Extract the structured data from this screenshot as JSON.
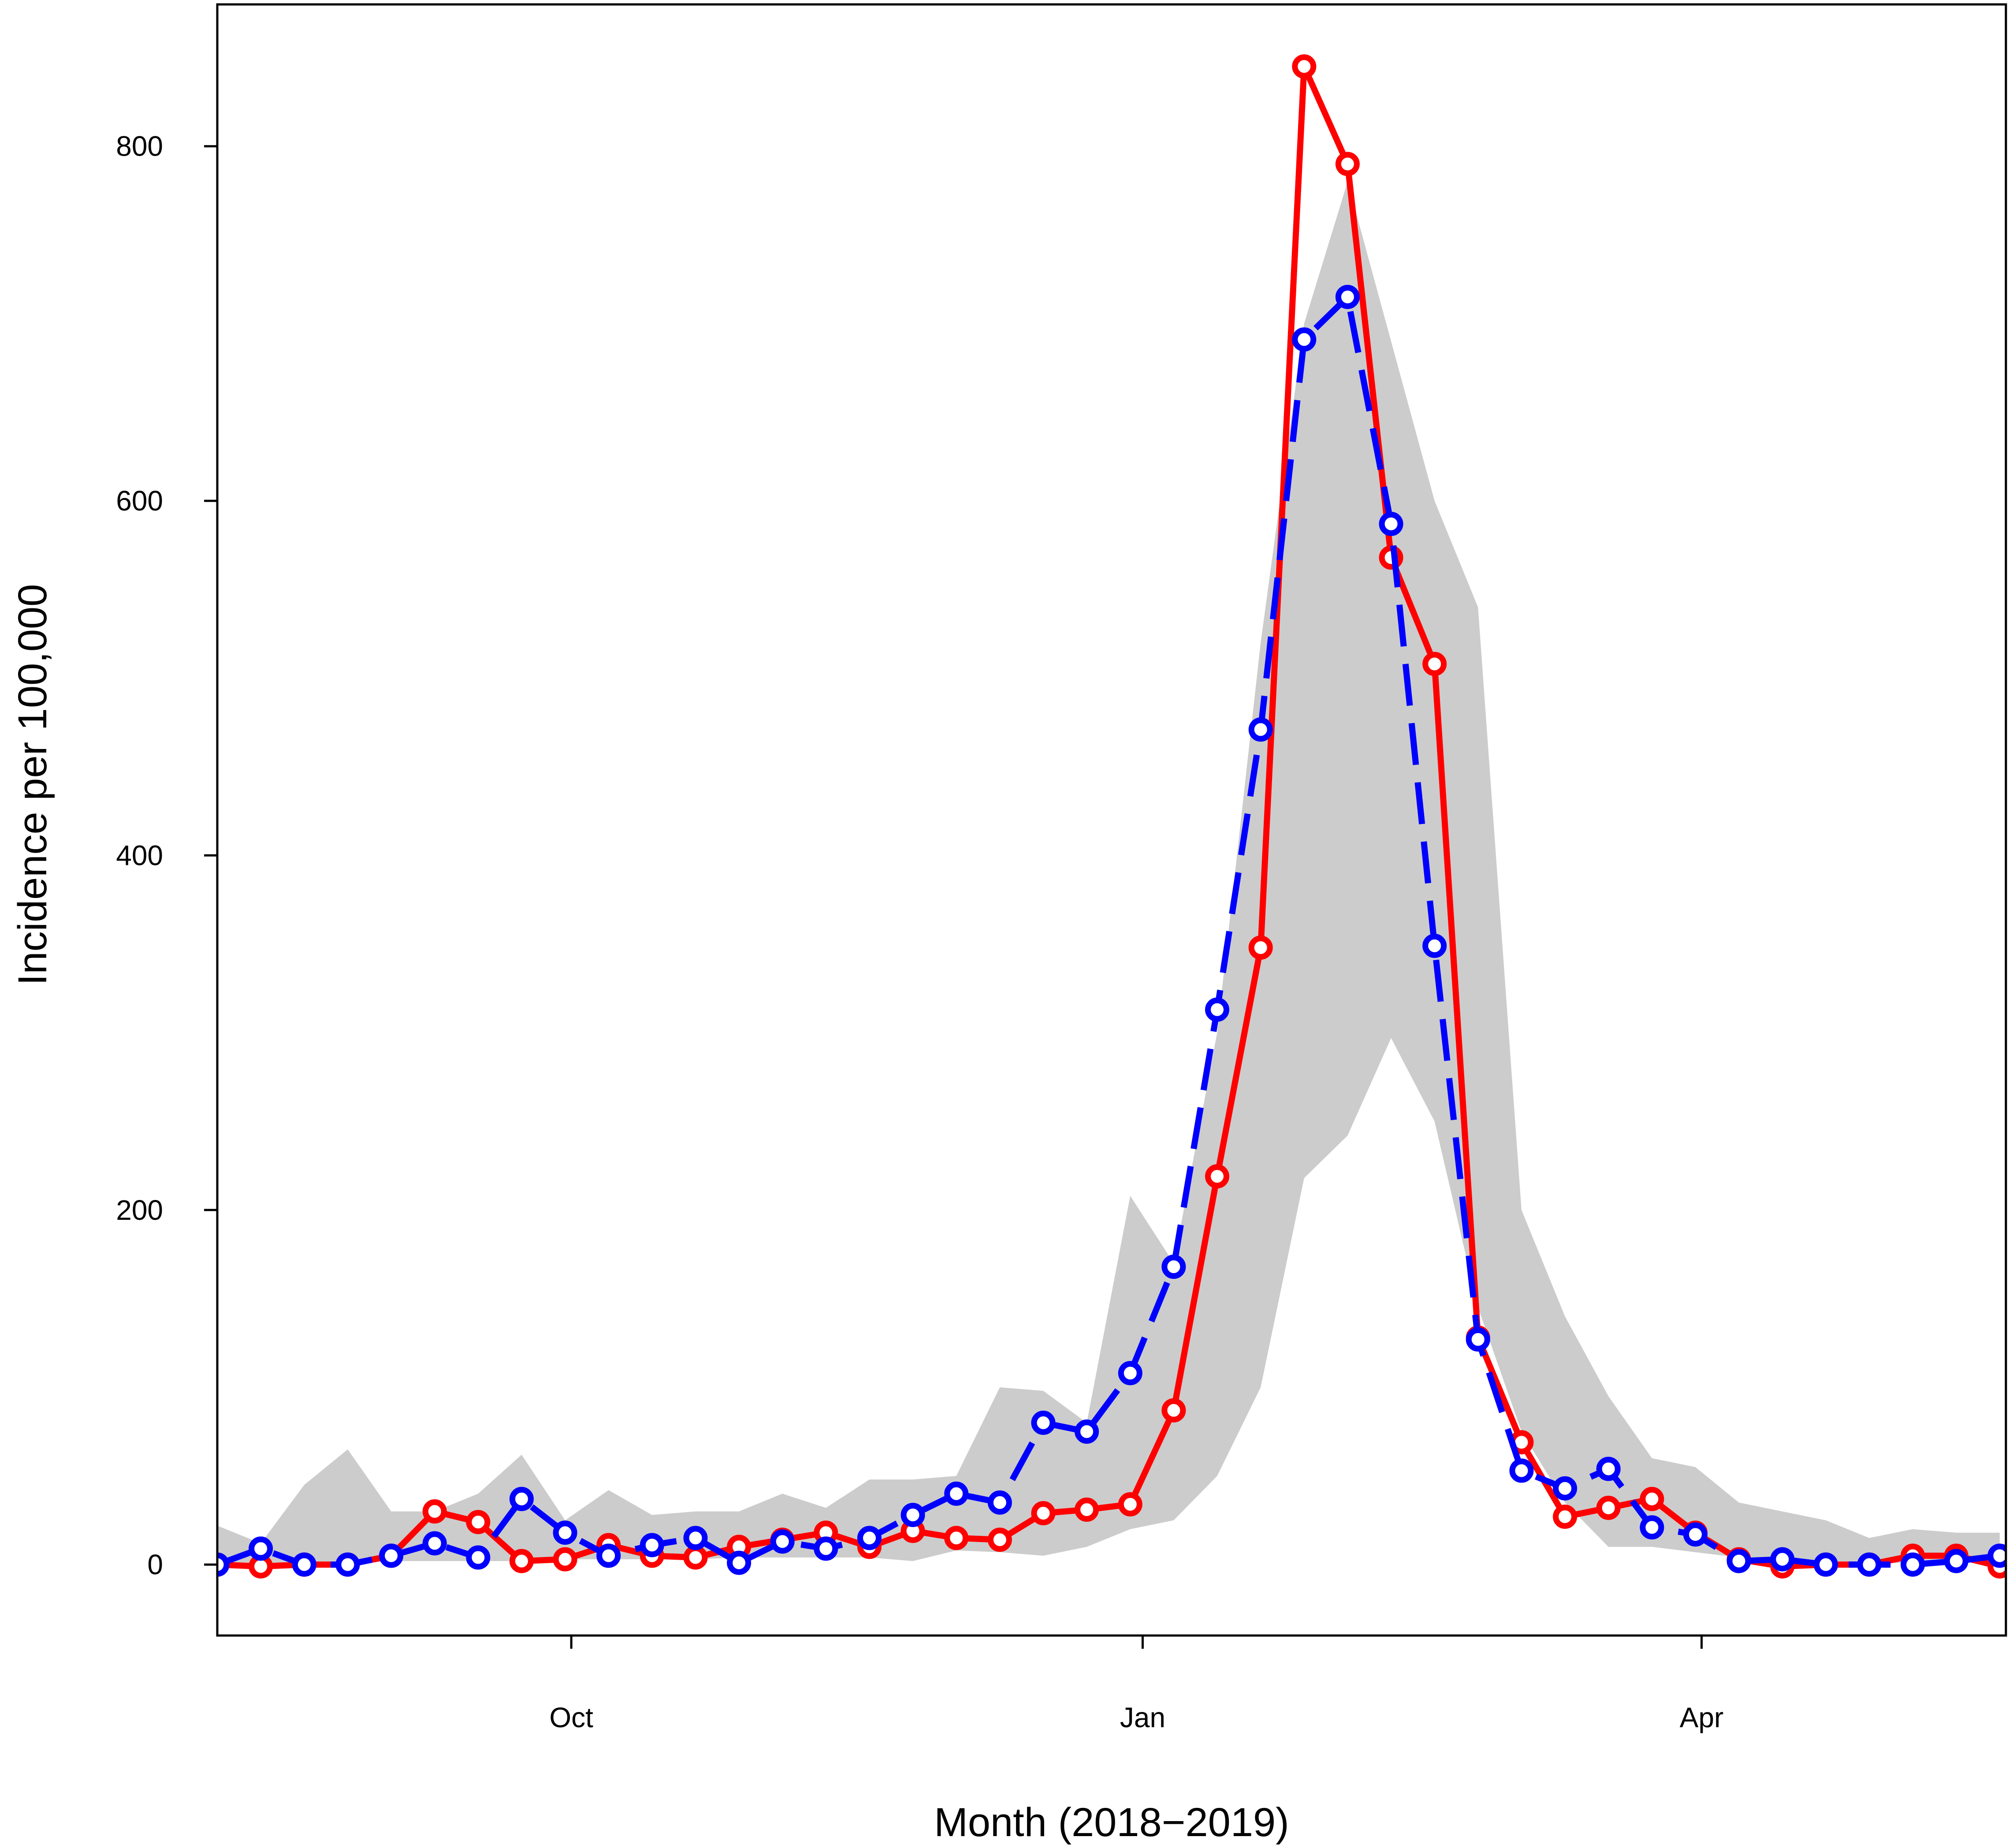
{
  "chart_data": {
    "type": "line",
    "title": "",
    "xlabel": "Month (2018−2019)",
    "ylabel": "Incidence per 100,000",
    "ylim": [
      -40,
      880
    ],
    "xlim": [
      "2018-08-05",
      "2019-05-20"
    ],
    "x_ticks": [
      {
        "date": "2018-10-01",
        "label": "Oct"
      },
      {
        "date": "2019-01-01",
        "label": "Jan"
      },
      {
        "date": "2019-04-01",
        "label": "Apr"
      }
    ],
    "y_ticks": [
      0,
      200,
      400,
      600,
      800
    ],
    "grid": false,
    "legend": "none",
    "colors": {
      "red_series": "#ff0000",
      "blue_series": "#0000ff",
      "band": "#cccccc"
    },
    "x": [
      "2018-08-05",
      "2018-08-12",
      "2018-08-19",
      "2018-08-26",
      "2018-09-02",
      "2018-09-09",
      "2018-09-16",
      "2018-09-23",
      "2018-09-30",
      "2018-10-07",
      "2018-10-14",
      "2018-10-21",
      "2018-10-28",
      "2018-11-04",
      "2018-11-11",
      "2018-11-18",
      "2018-11-25",
      "2018-12-02",
      "2018-12-09",
      "2018-12-16",
      "2018-12-23",
      "2018-12-30",
      "2019-01-06",
      "2019-01-13",
      "2019-01-20",
      "2019-01-27",
      "2019-02-03",
      "2019-02-10",
      "2019-02-17",
      "2019-02-24",
      "2019-03-03",
      "2019-03-10",
      "2019-03-17",
      "2019-03-24",
      "2019-03-31",
      "2019-04-07",
      "2019-04-14",
      "2019-04-21",
      "2019-04-28",
      "2019-05-05",
      "2019-05-12",
      "2019-05-19"
    ],
    "band": {
      "lower": [
        0,
        0,
        0,
        0,
        2,
        2,
        2,
        2,
        3,
        3,
        3,
        3,
        4,
        4,
        4,
        4,
        2,
        8,
        7,
        5,
        10,
        20,
        25,
        50,
        100,
        218,
        242,
        297,
        250,
        145,
        75,
        35,
        10,
        10,
        7,
        4,
        2,
        2,
        1,
        1,
        1,
        1
      ],
      "upper": [
        22,
        12,
        45,
        65,
        30,
        30,
        40,
        62,
        25,
        42,
        28,
        30,
        30,
        40,
        32,
        48,
        48,
        50,
        100,
        98,
        80,
        208,
        170,
        300,
        520,
        700,
        780,
        690,
        600,
        540,
        200,
        140,
        95,
        60,
        55,
        35,
        30,
        25,
        15,
        20,
        18,
        18
      ]
    },
    "series": [
      {
        "color": "#ff0000",
        "line_style": "solid",
        "values": [
          0,
          -1,
          0,
          0,
          5,
          30,
          24,
          2,
          3,
          11,
          5,
          4,
          10,
          14,
          18,
          10,
          19,
          15,
          14,
          29,
          31,
          34,
          87,
          219,
          348,
          845,
          790,
          568,
          508,
          128,
          69,
          27,
          32,
          37,
          18,
          3,
          -1,
          0,
          0,
          5,
          5,
          -1
        ]
      },
      {
        "color": "#0000ff",
        "line_style": "dashed",
        "values": [
          0,
          9,
          0,
          0,
          5,
          12,
          4,
          37,
          18,
          5,
          11,
          15,
          1,
          13,
          9,
          15,
          28,
          40,
          35,
          80,
          75,
          108,
          168,
          313,
          471,
          691,
          715,
          587,
          349,
          127,
          53,
          43,
          54,
          21,
          17,
          2,
          3,
          0,
          0,
          0,
          2,
          5
        ]
      }
    ]
  }
}
